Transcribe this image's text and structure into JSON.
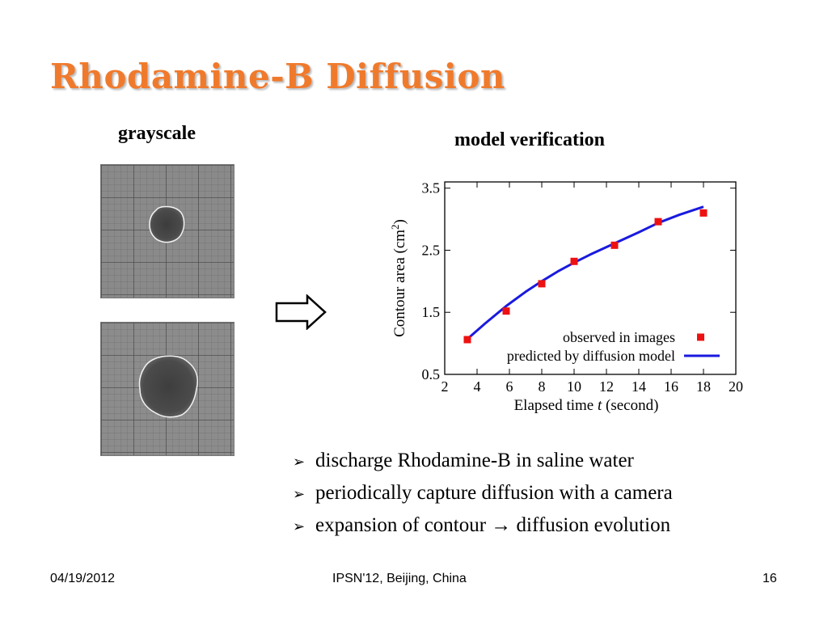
{
  "slide": {
    "title": "Rhodamine-B Diffusion",
    "grayscale_label": "grayscale",
    "model_label": "model verification"
  },
  "images": {
    "thumb1_icon": "grayscale-dye-blob-small",
    "thumb2_icon": "grayscale-dye-blob-large",
    "arrow_icon": "outlined-right-arrow"
  },
  "bullets": [
    "discharge Rhodamine-B in saline water",
    "periodically capture diffusion with a camera",
    "expansion of contour → diffusion evolution"
  ],
  "bullet_marker": "➢",
  "footer": {
    "date": "04/19/2012",
    "conference": "IPSN'12, Beijing, China",
    "page": "16"
  },
  "colors": {
    "title": "#f07a2c",
    "observed": "#ee1111",
    "predicted": "#1a1adf"
  },
  "chart_data": {
    "type": "scatter",
    "xlabel_prefix": "Elapsed time ",
    "xlabel_var": "t",
    "xlabel_suffix": " (second)",
    "ylabel_main": "Contour area (cm",
    "ylabel_sup": "2",
    "ylabel_end": ")",
    "xlim": [
      2,
      20
    ],
    "ylim": [
      0.5,
      3.6
    ],
    "xticks": [
      2,
      4,
      6,
      8,
      10,
      12,
      14,
      16,
      18,
      20
    ],
    "yticks": [
      0.5,
      1.5,
      2.5,
      3.5
    ],
    "legend_position": "bottom-right",
    "series": [
      {
        "name": "observed in images",
        "kind": "scatter",
        "x": [
          3.4,
          5.8,
          8.0,
          10.0,
          12.5,
          15.2,
          18.0
        ],
        "y": [
          1.06,
          1.52,
          1.96,
          2.32,
          2.58,
          2.96,
          3.1
        ]
      },
      {
        "name": "predicted by diffusion model",
        "kind": "line",
        "x": [
          3.4,
          4.5,
          5.8,
          7.0,
          8.0,
          9.0,
          10.0,
          11.0,
          12.5,
          14.0,
          15.2,
          16.5,
          18.0
        ],
        "y": [
          1.07,
          1.32,
          1.6,
          1.83,
          2.0,
          2.16,
          2.3,
          2.43,
          2.61,
          2.79,
          2.94,
          3.07,
          3.2
        ]
      }
    ]
  }
}
